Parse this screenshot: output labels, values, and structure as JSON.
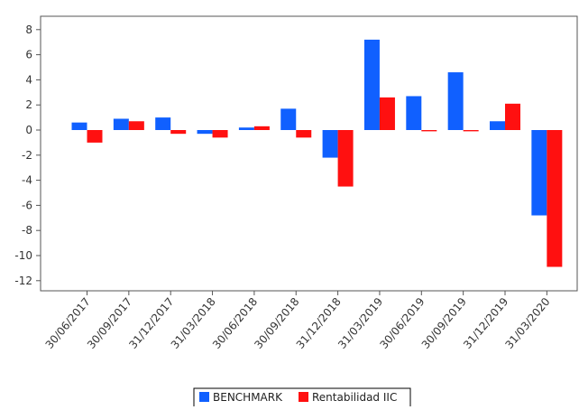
{
  "chart_data": {
    "type": "bar",
    "title": "",
    "xlabel": "",
    "ylabel": "",
    "ylim": [
      -13,
      9
    ],
    "yticks": [
      8,
      6,
      4,
      2,
      0,
      -2,
      -4,
      -6,
      -8,
      -10,
      -12
    ],
    "grid": false,
    "legend_position": "bottom",
    "categories": [
      "30/06/2017",
      "30/09/2017",
      "31/12/2017",
      "31/03/2018",
      "30/06/2018",
      "30/09/2018",
      "31/12/2018",
      "31/03/2019",
      "30/06/2019",
      "30/09/2019",
      "31/12/2019",
      "31/03/2020"
    ],
    "series": [
      {
        "name": "BENCHMARK",
        "color": "#1060ff",
        "values": [
          0.6,
          0.9,
          1.0,
          -0.3,
          0.2,
          1.7,
          -2.2,
          7.2,
          2.7,
          4.6,
          0.7,
          -6.8
        ]
      },
      {
        "name": "Rentabilidad IIC",
        "color": "#ff1010",
        "values": [
          -1.0,
          0.7,
          -0.3,
          -0.6,
          0.3,
          -0.6,
          -4.5,
          2.6,
          -0.1,
          -0.1,
          2.1,
          -10.9
        ]
      }
    ]
  }
}
